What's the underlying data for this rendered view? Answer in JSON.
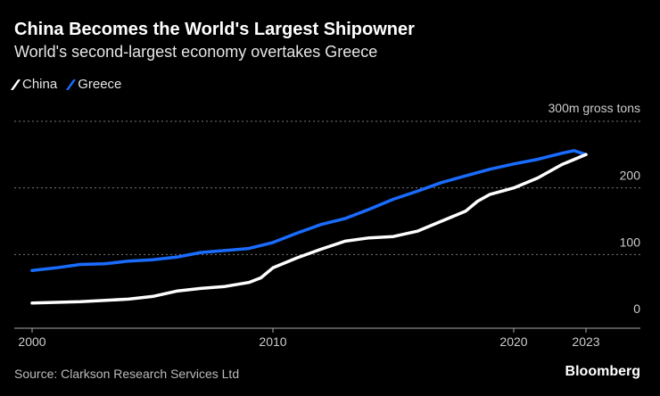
{
  "title": "China Becomes the World's Largest Shipowner",
  "subtitle": "World's second-largest economy overtakes Greece",
  "source": "Source: Clarkson Research Services Ltd",
  "brand": "Bloomberg",
  "colors": {
    "China": "#ffffff",
    "Greece": "#1a6cff",
    "background": "#000000"
  },
  "chart_data": {
    "type": "line",
    "xlim": [
      2000,
      2023
    ],
    "ylim": [
      0,
      300
    ],
    "unit_label": "300m gross tons",
    "x_ticks": [
      "2000",
      "2010",
      "2020",
      "2023"
    ],
    "y_ticks": [
      "0",
      "100",
      "200"
    ],
    "grid": "horizontal dotted",
    "legend": "top-left",
    "series": [
      {
        "name": "China",
        "x": [
          2000,
          2002,
          2004,
          2005,
          2006,
          2007,
          2008,
          2009,
          2009.5,
          2010,
          2011,
          2012,
          2013,
          2014,
          2015,
          2016,
          2017,
          2018,
          2018.5,
          2019,
          2020,
          2021,
          2022,
          2023
        ],
        "values": [
          27,
          29,
          33,
          37,
          45,
          49,
          52,
          58,
          65,
          80,
          95,
          108,
          120,
          125,
          127,
          135,
          150,
          165,
          180,
          190,
          200,
          215,
          235,
          250
        ]
      },
      {
        "name": "Greece",
        "x": [
          2000,
          2001,
          2002,
          2003,
          2004,
          2005,
          2006,
          2007,
          2008,
          2009,
          2010,
          2011,
          2012,
          2013,
          2014,
          2015,
          2016,
          2017,
          2018,
          2019,
          2020,
          2021,
          2022,
          2022.5,
          2023
        ],
        "values": [
          76,
          80,
          85,
          86,
          90,
          92,
          96,
          103,
          106,
          109,
          118,
          132,
          145,
          154,
          168,
          183,
          195,
          208,
          218,
          228,
          236,
          243,
          252,
          256,
          250
        ]
      }
    ]
  }
}
